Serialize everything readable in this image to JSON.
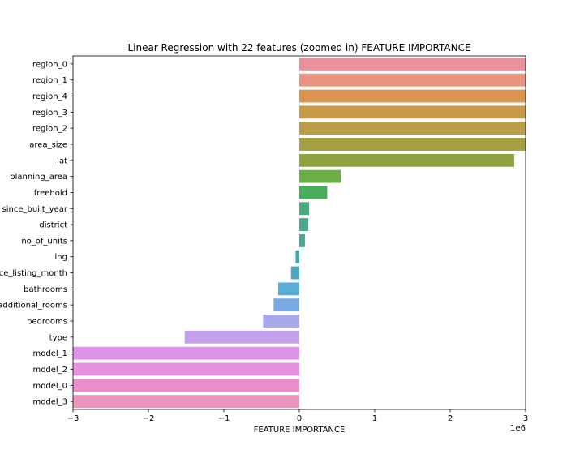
{
  "chart_data": {
    "type": "bar",
    "orientation": "horizontal",
    "title": "Linear Regression with 22 features (zoomed in) FEATURE IMPORTANCE",
    "xlabel": "FEATURE IMPORTANCE",
    "ylabel": "",
    "x_offset_label": "1e6",
    "xlim": [
      -3000000,
      3000000
    ],
    "x_ticks": [
      -3000000,
      -2000000,
      -1000000,
      0,
      1000000,
      2000000,
      3000000
    ],
    "x_tick_labels": [
      "−3",
      "−2",
      "−1",
      "0",
      "1",
      "2",
      "3"
    ],
    "grid": false,
    "legend": "none",
    "categories": [
      "region_0",
      "region_1",
      "region_4",
      "region_3",
      "region_2",
      "area_size",
      "lat",
      "planning_area",
      "freehold",
      "since_built_year",
      "district",
      "no_of_units",
      "lng",
      "since_listing_month",
      "bathrooms",
      "additional_rooms",
      "bedrooms",
      "type",
      "model_1",
      "model_2",
      "model_0",
      "model_3"
    ],
    "values": [
      3500000,
      3400000,
      3300000,
      3200000,
      3100000,
      3050000,
      2850000,
      550000,
      370000,
      130000,
      120000,
      75000,
      -50000,
      -110000,
      -280000,
      -340000,
      -480000,
      -1520000,
      -3100000,
      -3200000,
      -3300000,
      -3400000
    ],
    "colors": [
      "#ea919b",
      "#e89481",
      "#d9954f",
      "#c79a48",
      "#b99e47",
      "#a5a044",
      "#8ea43f",
      "#6daf47",
      "#4aad5c",
      "#4aab83",
      "#49a98f",
      "#4aa99c",
      "#4aa9aa",
      "#4aa9bd",
      "#59aed8",
      "#78a9e2",
      "#a7a8ea",
      "#c4a1eb",
      "#dc93e9",
      "#e891df",
      "#ea8ecb",
      "#ea94be"
    ]
  }
}
